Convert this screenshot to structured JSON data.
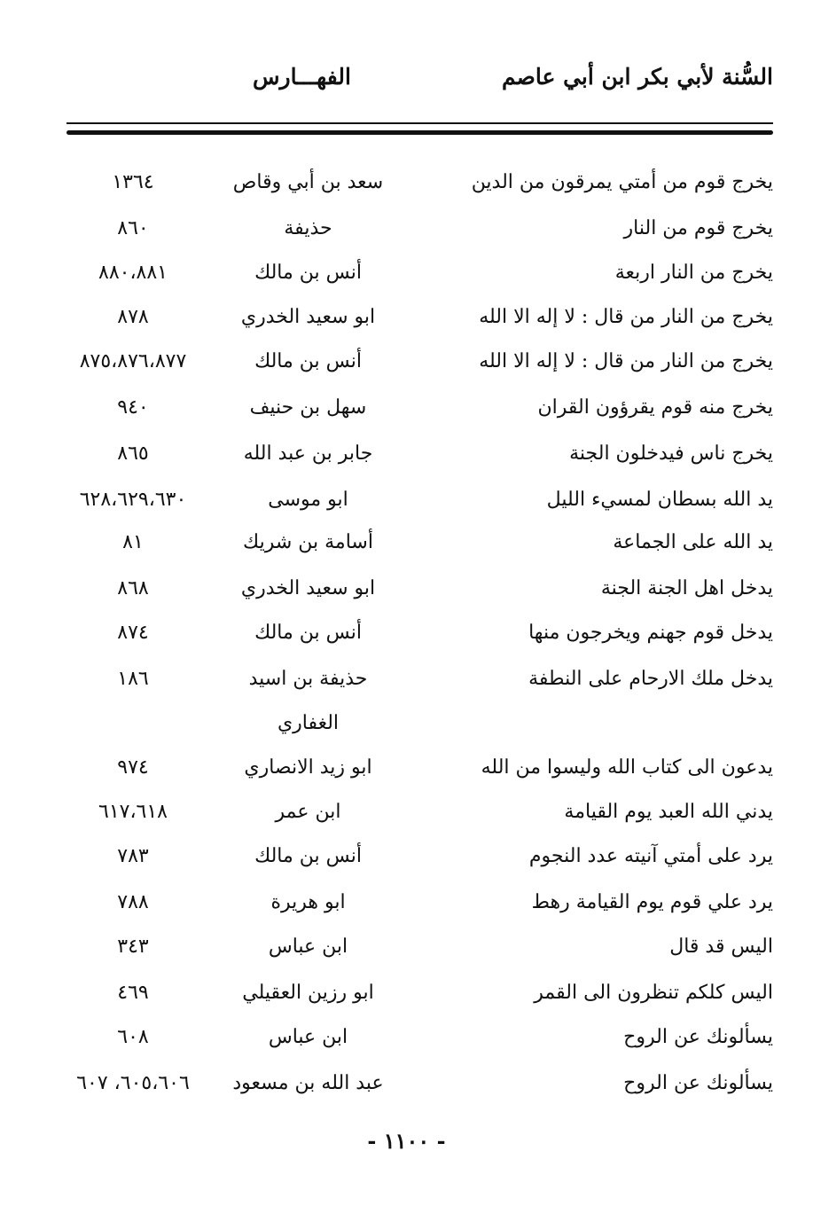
{
  "header": {
    "title": "السُّنة لأبي بكر ابن أبي عاصم",
    "section": "الفهـــارس"
  },
  "rows": [
    {
      "hadith": "يخرج قوم من أمتي يمرقون من الدين",
      "narrator": "سعد بن أبي وقاص",
      "refs": "١٣٦٤"
    },
    {
      "hadith": "يخرج قوم من النار",
      "narrator": "حذيفة",
      "refs": "٨٦٠"
    },
    {
      "hadith": "يخرج من النار اربعة",
      "narrator": "أنس بن مالك",
      "refs": "٨٨٠،٨٨١"
    },
    {
      "hadith": "يخرج من النار من قال : لا إله الا الله",
      "narrator": "ابو سعيد الخدري",
      "refs": "٨٧٨"
    },
    {
      "hadith": "يخرج من النار من قال : لا إله الا الله",
      "narrator": "أنس بن مالك",
      "refs": "٨٧٥،٨٧٦،٨٧٧"
    },
    {
      "hadith": "يخرج منه قوم يقرؤون القران",
      "narrator": "سهل بن حنيف",
      "refs": "٩٤٠"
    },
    {
      "hadith": "يخرج ناس فيدخلون الجنة",
      "narrator": "جابر بن عبد الله",
      "refs": "٨٦٥"
    },
    {
      "hadith": "يد الله بسطان لمسيء الليل",
      "narrator": "ابو موسى",
      "refs": "٦٢٨،٦٢٩،٦٣٠"
    },
    {
      "hadith": "يد الله على الجماعة",
      "narrator": "أسامة بن شريك",
      "refs": "٨١"
    },
    {
      "hadith": "يدخل اهل الجنة الجنة",
      "narrator": "ابو سعيد الخدري",
      "refs": "٨٦٨"
    },
    {
      "hadith": "يدخل قوم جهنم ويخرجون منها",
      "narrator": "أنس بن مالك",
      "refs": "٨٧٤"
    },
    {
      "hadith": "يدخل ملك الارحام على النطفة",
      "narrator": "حذيفة بن اسيد",
      "refs": "١٨٦"
    },
    {
      "hadith": "",
      "narrator": "الغفاري",
      "refs": ""
    },
    {
      "hadith": "يدعون الى كتاب الله وليسوا من الله",
      "narrator": "ابو زيد الانصاري",
      "refs": "٩٧٤"
    },
    {
      "hadith": "يدني الله العبد يوم القيامة",
      "narrator": "ابن عمر",
      "refs": "٦١٧،٦١٨"
    },
    {
      "hadith": "يرد على أمتي آنيته عدد النجوم",
      "narrator": "أنس بن مالك",
      "refs": "٧٨٣"
    },
    {
      "hadith": "يرد علي قوم يوم القيامة رهط",
      "narrator": "ابو هريرة",
      "refs": "٧٨٨"
    },
    {
      "hadith": "اليس قد قال",
      "narrator": "ابن عباس",
      "refs": "٣٤٣"
    },
    {
      "hadith": "اليس كلكم تنظرون الى القمر",
      "narrator": "ابو رزين العقيلي",
      "refs": "٤٦٩"
    },
    {
      "hadith": "يسألونك عن الروح",
      "narrator": "ابن عباس",
      "refs": "٦٠٨"
    },
    {
      "hadith": "يسألونك عن الروح",
      "narrator": "عبد الله بن مسعود",
      "refs": "٦٠٥،٦٠٦، ٦٠٧"
    }
  ],
  "footer": {
    "page_number": "- ١١٠٠ -"
  }
}
